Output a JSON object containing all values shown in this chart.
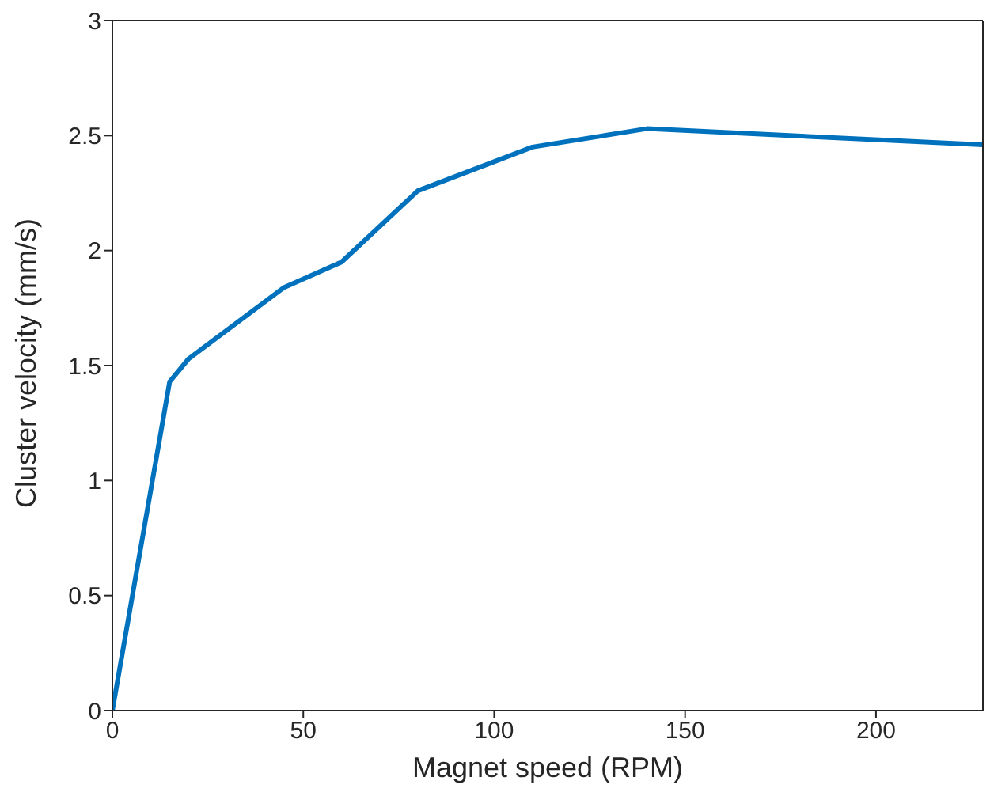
{
  "chart_data": {
    "type": "line",
    "xlabel": "Magnet speed (RPM)",
    "ylabel": "Cluster velocity (mm/s)",
    "x": [
      0,
      15,
      20,
      45,
      60,
      80,
      110,
      140,
      228
    ],
    "series": [
      {
        "color": "#0072bd",
        "values": [
          0,
          1.43,
          1.53,
          1.84,
          1.95,
          2.26,
          2.45,
          2.53,
          2.46
        ]
      }
    ],
    "xlim": [
      0,
      228
    ],
    "xticks": [
      0,
      50,
      100,
      150,
      200
    ],
    "ylim": [
      0,
      3
    ],
    "yticks": [
      0,
      0.5,
      1,
      1.5,
      2,
      2.5,
      3
    ],
    "grid": false,
    "legend": false,
    "marker": "none",
    "line_style": "solid"
  }
}
